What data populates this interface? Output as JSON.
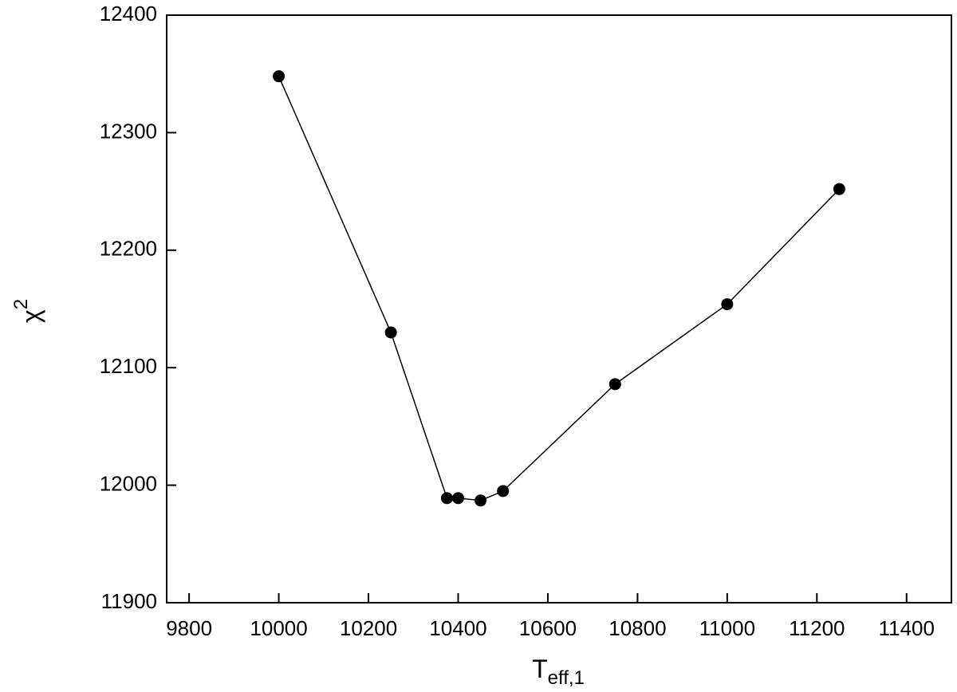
{
  "chart_data": {
    "type": "line",
    "x_label": "T",
    "x_label_sub": "eff,1",
    "y_label": "χ",
    "y_label_sup": "2",
    "x": [
      10000,
      10250,
      10375,
      10400,
      10450,
      10500,
      10750,
      11000,
      11250
    ],
    "series": [
      {
        "color": "#000000",
        "values": [
          12348,
          12130,
          11989,
          11989,
          11987,
          11995,
          12086,
          12154,
          12252
        ]
      }
    ],
    "xlim": [
      9750,
      11500
    ],
    "xticks": [
      9800,
      10000,
      10200,
      10400,
      10600,
      10800,
      11000,
      11200,
      11400
    ],
    "ylim": [
      11900,
      12400
    ],
    "yticks": [
      11900,
      12000,
      12100,
      12200,
      12300,
      12400
    ],
    "grid": false,
    "markers": true
  }
}
